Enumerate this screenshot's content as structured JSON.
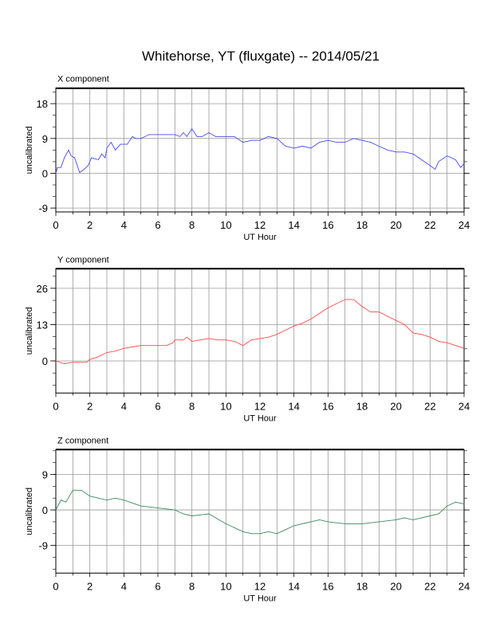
{
  "title": "Whitehorse, YT (fluxgate) -- 2014/05/21",
  "chart_data": [
    {
      "type": "line",
      "title": "X component",
      "xlabel": "UT Hour",
      "ylabel": "uncalibrated",
      "xlim": [
        0,
        24
      ],
      "ylim": [
        -10,
        22
      ],
      "xticks": [
        0,
        2,
        4,
        6,
        8,
        10,
        12,
        14,
        16,
        18,
        20,
        22,
        24
      ],
      "yticks": [
        -9,
        0,
        9,
        18
      ],
      "grid": true,
      "color": "#4a4aff",
      "x": [
        0,
        0.1,
        0.3,
        0.5,
        0.75,
        0.9,
        1.1,
        1.4,
        1.6,
        1.9,
        2.1,
        2.5,
        2.7,
        2.9,
        3.0,
        3.25,
        3.5,
        3.8,
        4.2,
        4.5,
        4.7,
        5,
        5.5,
        6,
        6.5,
        7,
        7.3,
        7.5,
        7.7,
        8,
        8.3,
        8.6,
        9,
        9.4,
        10,
        10.5,
        11,
        11.5,
        12,
        12.5,
        13,
        13.5,
        14,
        14.5,
        15,
        15.5,
        16,
        16.5,
        17,
        17.5,
        18,
        18.5,
        19,
        19.5,
        20,
        20.5,
        21,
        21.5,
        22,
        22.3,
        22.5,
        23,
        23.5,
        23.8,
        24
      ],
      "values": [
        0,
        1.5,
        1.5,
        4,
        6,
        4.5,
        4,
        0.2,
        0.8,
        2,
        4,
        3.5,
        5,
        4,
        6.5,
        8,
        6,
        7.5,
        7.5,
        9.5,
        9,
        9,
        10,
        10,
        10,
        10,
        9.5,
        10.5,
        9.5,
        11.5,
        9.5,
        9.5,
        10.5,
        9.5,
        9.5,
        9.5,
        8,
        8.5,
        8.5,
        9.5,
        9,
        7,
        6.5,
        7,
        6.5,
        8,
        8.5,
        8,
        8,
        9,
        8.5,
        8,
        7,
        6,
        5.5,
        5.5,
        5,
        3.5,
        2,
        1,
        3,
        4.5,
        3.5,
        1.5,
        2.5
      ]
    },
    {
      "type": "line",
      "title": "Y component",
      "xlabel": "UT Hour",
      "ylabel": "uncalibrated",
      "xlim": [
        0,
        24
      ],
      "ylim": [
        -11.5,
        33
      ],
      "xticks": [
        0,
        2,
        4,
        6,
        8,
        10,
        12,
        14,
        16,
        18,
        20,
        22,
        24
      ],
      "yticks": [
        0,
        13,
        26
      ],
      "grid": true,
      "color": "#ff4a4a",
      "x": [
        0,
        0.5,
        1,
        1.8,
        2,
        2.5,
        3,
        3.5,
        4,
        4.5,
        5,
        6,
        6.5,
        6.9,
        7,
        7.5,
        7.7,
        8,
        8.5,
        9,
        9.5,
        10,
        10.5,
        11,
        11.5,
        12,
        12.5,
        13,
        13.5,
        14,
        14.5,
        15,
        15.5,
        16,
        16.5,
        17,
        17.5,
        18,
        18.5,
        19,
        19.5,
        20,
        20.5,
        21,
        21.5,
        22,
        22.5,
        23,
        23.5,
        24
      ],
      "values": [
        0,
        -1,
        -0.5,
        -0.5,
        0.5,
        1.5,
        3,
        3.5,
        4.5,
        5,
        5.5,
        5.5,
        5.5,
        6.5,
        7.5,
        7.5,
        8.5,
        7,
        7.5,
        8,
        7.5,
        7.5,
        7,
        5.5,
        7.5,
        8,
        8.5,
        9.5,
        11,
        12.5,
        13.5,
        15,
        17,
        19,
        20.5,
        22,
        22,
        19.5,
        17.5,
        17.5,
        16,
        14.5,
        13,
        10,
        9.5,
        8.5,
        7,
        6.5,
        5.5,
        4.5
      ]
    },
    {
      "type": "line",
      "title": "Z component",
      "xlabel": "UT Hour",
      "ylabel": "uncalibrated",
      "xlim": [
        0,
        24
      ],
      "ylim": [
        -16,
        15.3
      ],
      "xticks": [
        0,
        2,
        4,
        6,
        8,
        10,
        12,
        14,
        16,
        18,
        20,
        22,
        24
      ],
      "yticks": [
        -9,
        0,
        9
      ],
      "grid": true,
      "color": "#3a8a5a",
      "x": [
        0,
        0.3,
        0.6,
        0.8,
        1,
        1.5,
        2,
        2.5,
        3,
        3.5,
        4,
        5,
        6,
        7,
        7.5,
        8,
        9,
        10,
        11,
        11.5,
        12,
        12.5,
        13,
        13.5,
        14,
        14.5,
        15,
        15.5,
        16,
        17,
        18,
        19,
        20,
        20.5,
        21,
        22,
        22.5,
        23,
        23.5,
        24
      ],
      "values": [
        0,
        2.5,
        2,
        3.5,
        5,
        5,
        3.5,
        3,
        2.5,
        3,
        2.5,
        1,
        0.5,
        0,
        -1,
        -1.5,
        -1,
        -3.5,
        -5.5,
        -6,
        -6,
        -5.5,
        -6,
        -5,
        -4,
        -3.5,
        -3,
        -2.5,
        -3,
        -3.5,
        -3.5,
        -3,
        -2.5,
        -2,
        -2.5,
        -1.5,
        -1,
        1,
        2,
        1.5
      ]
    }
  ]
}
